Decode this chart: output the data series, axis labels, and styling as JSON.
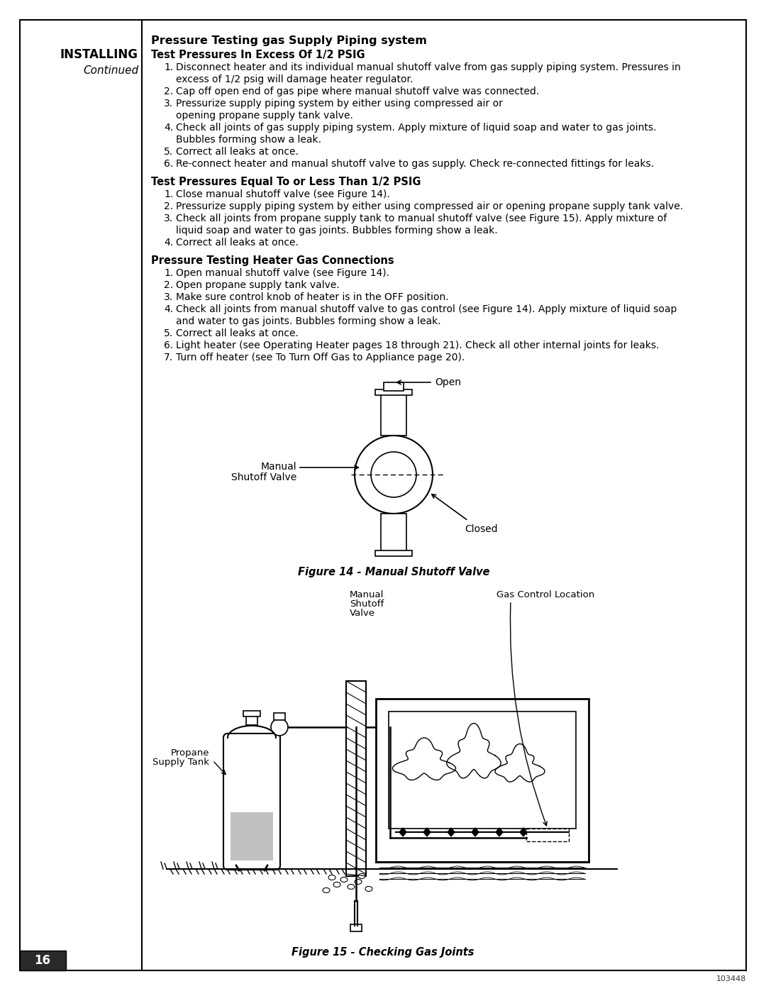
{
  "bg_color": "#ffffff",
  "header_installing": "INSTALLING",
  "header_continued": "Continued",
  "main_title": "Pressure Testing gas Supply Piping system",
  "section1_title": "Test Pressures In Excess Of 1/2 PSIG",
  "section1_items": [
    [
      "Disconnect heater and its individual manual shutoff valve from gas supply piping system. Pressures in",
      "excess of 1/2 psig will damage heater regulator."
    ],
    [
      "Cap off open end of gas pipe where manual shutoff valve was connected."
    ],
    [
      "Pressurize supply piping system by either using compressed air or",
      "opening propane supply tank valve."
    ],
    [
      "Check all joints of gas supply piping system. Apply mixture of liquid soap and water to gas joints.",
      "Bubbles forming show a leak."
    ],
    [
      "Correct all leaks at once."
    ],
    [
      "Re-connect heater and manual shutoff valve to gas supply. Check re-connected fittings for leaks."
    ]
  ],
  "section2_title": "Test Pressures Equal To or Less Than 1/2 PSIG",
  "section2_items": [
    [
      "Close manual shutoff valve (see Figure 14)."
    ],
    [
      "Pressurize supply piping system by either using compressed air or opening propane supply tank valve."
    ],
    [
      "Check all joints from propane supply tank to manual shutoff valve (see Figure 15). Apply mixture of",
      "liquid soap and water to gas joints. Bubbles forming show a leak."
    ],
    [
      "Correct all leaks at once."
    ]
  ],
  "section3_title": "Pressure Testing Heater Gas Connections",
  "section3_items": [
    [
      "Open manual shutoff valve (see Figure 14)."
    ],
    [
      "Open propane supply tank valve."
    ],
    [
      "Make sure control knob of heater is in the OFF position."
    ],
    [
      "Check all joints from manual shutoff valve to gas control (see Figure 14). Apply mixture of liquid soap",
      "and water to gas joints. Bubbles forming show a leak."
    ],
    [
      "Correct all leaks at once."
    ],
    [
      "Light heater (see Operating Heater pages 18 through 21). Check all other internal joints for leaks."
    ],
    [
      "Turn off heater (see To Turn Off Gas to Appliance page 20)."
    ]
  ],
  "fig14_caption": "Figure 14 - Manual Shutoff Valve",
  "fig15_caption": "Figure 15 - Checking Gas Joints",
  "page_number": "16",
  "doc_number": "103448"
}
